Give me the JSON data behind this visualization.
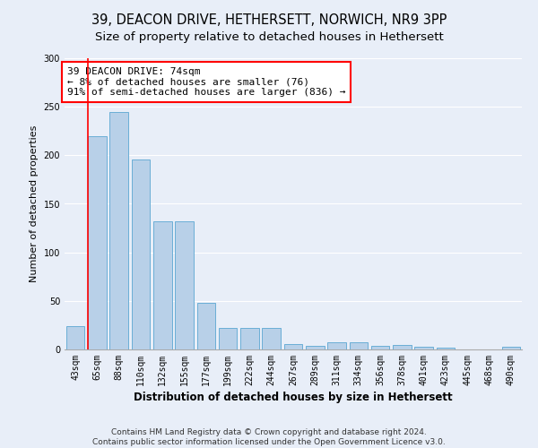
{
  "title1": "39, DEACON DRIVE, HETHERSETT, NORWICH, NR9 3PP",
  "title2": "Size of property relative to detached houses in Hethersett",
  "xlabel": "Distribution of detached houses by size in Hethersett",
  "ylabel": "Number of detached properties",
  "categories": [
    "43sqm",
    "65sqm",
    "88sqm",
    "110sqm",
    "132sqm",
    "155sqm",
    "177sqm",
    "199sqm",
    "222sqm",
    "244sqm",
    "267sqm",
    "289sqm",
    "311sqm",
    "334sqm",
    "356sqm",
    "378sqm",
    "401sqm",
    "423sqm",
    "445sqm",
    "468sqm",
    "490sqm"
  ],
  "values": [
    24,
    220,
    245,
    196,
    132,
    132,
    48,
    22,
    22,
    22,
    6,
    4,
    7,
    7,
    4,
    5,
    3,
    2,
    0,
    0,
    3
  ],
  "bar_color": "#b8d0e8",
  "bar_edge_color": "#6aaed6",
  "annotation_line1": "39 DEACON DRIVE: 74sqm",
  "annotation_line2": "← 8% of detached houses are smaller (76)",
  "annotation_line3": "91% of semi-detached houses are larger (836) →",
  "annotation_box_color": "white",
  "annotation_box_edge_color": "red",
  "redline_x": 0.575,
  "ylim": [
    0,
    300
  ],
  "yticks": [
    0,
    50,
    100,
    150,
    200,
    250,
    300
  ],
  "background_color": "#e8eef8",
  "grid_color": "white",
  "footer_text": "Contains HM Land Registry data © Crown copyright and database right 2024.\nContains public sector information licensed under the Open Government Licence v3.0.",
  "title1_fontsize": 10.5,
  "title2_fontsize": 9.5,
  "xlabel_fontsize": 8.5,
  "ylabel_fontsize": 8,
  "tick_fontsize": 7,
  "annotation_fontsize": 8,
  "footer_fontsize": 6.5
}
